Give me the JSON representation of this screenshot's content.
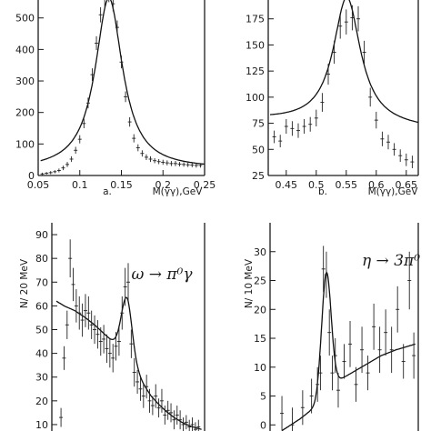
{
  "chart_data": [
    {
      "id": "a",
      "type": "scatter",
      "xlim": [
        0.05,
        0.25
      ],
      "ylim": [
        0,
        580
      ],
      "x_ticks": [
        0.05,
        0.1,
        0.15,
        0.2,
        0.25
      ],
      "x_tick_labels": [
        "0.05",
        "0.1",
        "0.15",
        "0.2",
        "0.25"
      ],
      "y_ticks": [
        0,
        100,
        200,
        300,
        400,
        500
      ],
      "y_tick_labels": [
        "0",
        "100",
        "200",
        "300",
        "400",
        "500"
      ],
      "panel_letter": "a.",
      "xlabel": "M(γγ),GeV",
      "ylabel": "",
      "annotation": "",
      "fit_peak": {
        "mass": 0.135,
        "width": 0.02,
        "amplitude": 545,
        "background": [
          18,
          180
        ]
      },
      "points": [
        [
          0.055,
          5,
          4
        ],
        [
          0.06,
          7,
          4
        ],
        [
          0.065,
          9,
          5
        ],
        [
          0.07,
          12,
          5
        ],
        [
          0.075,
          16,
          6
        ],
        [
          0.08,
          24,
          7
        ],
        [
          0.085,
          35,
          8
        ],
        [
          0.09,
          52,
          9
        ],
        [
          0.095,
          80,
          11
        ],
        [
          0.1,
          115,
          13
        ],
        [
          0.105,
          165,
          15
        ],
        [
          0.11,
          230,
          17
        ],
        [
          0.115,
          320,
          20
        ],
        [
          0.12,
          420,
          22
        ],
        [
          0.125,
          510,
          24
        ],
        [
          0.13,
          560,
          25
        ],
        [
          0.135,
          575,
          25
        ],
        [
          0.14,
          545,
          24
        ],
        [
          0.145,
          470,
          22
        ],
        [
          0.15,
          360,
          20
        ],
        [
          0.155,
          250,
          17
        ],
        [
          0.16,
          170,
          15
        ],
        [
          0.165,
          118,
          13
        ],
        [
          0.17,
          88,
          11
        ],
        [
          0.175,
          70,
          10
        ],
        [
          0.18,
          58,
          9
        ],
        [
          0.185,
          52,
          9
        ],
        [
          0.19,
          47,
          8
        ],
        [
          0.195,
          44,
          8
        ],
        [
          0.2,
          42,
          8
        ],
        [
          0.205,
          40,
          8
        ],
        [
          0.21,
          38,
          8
        ],
        [
          0.215,
          38,
          8
        ],
        [
          0.22,
          36,
          7
        ],
        [
          0.225,
          35,
          7
        ],
        [
          0.23,
          34,
          7
        ],
        [
          0.235,
          33,
          7
        ],
        [
          0.24,
          32,
          7
        ],
        [
          0.245,
          32,
          7
        ]
      ]
    },
    {
      "id": "b",
      "type": "scatter",
      "xlim": [
        0.42,
        0.67
      ],
      "ylim": [
        25,
        200
      ],
      "x_ticks": [
        0.45,
        0.5,
        0.55,
        0.6,
        0.65
      ],
      "x_tick_labels": [
        "0.45",
        "0.5",
        "0.55",
        "0.6",
        "0.65"
      ],
      "y_ticks": [
        25,
        50,
        75,
        100,
        125,
        150,
        175
      ],
      "y_tick_labels": [
        "25",
        "50",
        "75",
        "100",
        "125",
        "150",
        "175"
      ],
      "panel_letter": "b.",
      "xlabel": "M(γγ),GeV",
      "ylabel": "",
      "annotation": "",
      "fit_peak": {
        "mass": 0.551,
        "width": 0.0275,
        "amplitude": 122,
        "background": [
          72,
          33
        ]
      },
      "points": [
        [
          0.43,
          62,
          6
        ],
        [
          0.44,
          58,
          6
        ],
        [
          0.45,
          72,
          7
        ],
        [
          0.46,
          70,
          7
        ],
        [
          0.47,
          68,
          7
        ],
        [
          0.48,
          72,
          7
        ],
        [
          0.49,
          74,
          7
        ],
        [
          0.5,
          80,
          8
        ],
        [
          0.51,
          95,
          9
        ],
        [
          0.52,
          122,
          10
        ],
        [
          0.53,
          143,
          11
        ],
        [
          0.54,
          168,
          12
        ],
        [
          0.55,
          172,
          12
        ],
        [
          0.56,
          176,
          12
        ],
        [
          0.57,
          175,
          12
        ],
        [
          0.58,
          143,
          11
        ],
        [
          0.59,
          100,
          9
        ],
        [
          0.6,
          78,
          8
        ],
        [
          0.61,
          60,
          7
        ],
        [
          0.62,
          57,
          7
        ],
        [
          0.63,
          50,
          6
        ],
        [
          0.64,
          44,
          6
        ],
        [
          0.65,
          40,
          6
        ],
        [
          0.66,
          38,
          6
        ]
      ]
    },
    {
      "id": "c",
      "type": "scatter",
      "xlim": [
        0,
        1
      ],
      "ylim": [
        5,
        95
      ],
      "x_ticks": [],
      "x_tick_labels": [],
      "y_ticks": [
        10,
        20,
        30,
        40,
        50,
        60,
        70,
        80,
        90
      ],
      "y_tick_labels": [
        "10",
        "20",
        "30",
        "40",
        "50",
        "60",
        "70",
        "80",
        "90"
      ],
      "panel_letter": "",
      "xlabel": "",
      "ylabel": "N/ 20 MeV",
      "annotation": "ω → π⁰γ",
      "fit_peak": {
        "mass": 0.49,
        "width": 0.035,
        "amplitude": 23
      },
      "fit_curve_c": [
        [
          0.03,
          62
        ],
        [
          0.08,
          60
        ],
        [
          0.15,
          58
        ],
        [
          0.22,
          55
        ],
        [
          0.28,
          52
        ],
        [
          0.33,
          49
        ],
        [
          0.38,
          46
        ],
        [
          0.42,
          44
        ],
        [
          0.46,
          42
        ],
        [
          0.5,
          40
        ],
        [
          0.55,
          33
        ],
        [
          0.6,
          27
        ],
        [
          0.65,
          22
        ],
        [
          0.7,
          18.5
        ],
        [
          0.75,
          15.5
        ],
        [
          0.8,
          13
        ],
        [
          0.85,
          11
        ],
        [
          0.9,
          9.5
        ],
        [
          0.95,
          8.5
        ],
        [
          0.98,
          8
        ]
      ],
      "points": [
        [
          0.06,
          13,
          4
        ],
        [
          0.08,
          38,
          5
        ],
        [
          0.1,
          52,
          6
        ],
        [
          0.12,
          80,
          8
        ],
        [
          0.14,
          69,
          7
        ],
        [
          0.16,
          60,
          7
        ],
        [
          0.18,
          57,
          7
        ],
        [
          0.2,
          54,
          7
        ],
        [
          0.22,
          58,
          7
        ],
        [
          0.24,
          57,
          7
        ],
        [
          0.26,
          52,
          6
        ],
        [
          0.28,
          50,
          6
        ],
        [
          0.3,
          48,
          6
        ],
        [
          0.32,
          45,
          6
        ],
        [
          0.34,
          46,
          6
        ],
        [
          0.36,
          42,
          6
        ],
        [
          0.38,
          40,
          6
        ],
        [
          0.4,
          38,
          6
        ],
        [
          0.42,
          43,
          6
        ],
        [
          0.44,
          45,
          6
        ],
        [
          0.46,
          57,
          7
        ],
        [
          0.48,
          68,
          8
        ],
        [
          0.5,
          70,
          8
        ],
        [
          0.52,
          44,
          6
        ],
        [
          0.54,
          32,
          6
        ],
        [
          0.56,
          28,
          5
        ],
        [
          0.58,
          25,
          5
        ],
        [
          0.6,
          22,
          5
        ],
        [
          0.62,
          26,
          5
        ],
        [
          0.64,
          20,
          5
        ],
        [
          0.66,
          18,
          4
        ],
        [
          0.68,
          22,
          5
        ],
        [
          0.7,
          17,
          4
        ],
        [
          0.72,
          20,
          5
        ],
        [
          0.74,
          14,
          4
        ],
        [
          0.76,
          16,
          4
        ],
        [
          0.78,
          15,
          4
        ],
        [
          0.8,
          12,
          4
        ],
        [
          0.82,
          14,
          4
        ],
        [
          0.84,
          12,
          4
        ],
        [
          0.86,
          10,
          3
        ],
        [
          0.88,
          11,
          3
        ],
        [
          0.9,
          9,
          3
        ],
        [
          0.92,
          10,
          3
        ],
        [
          0.94,
          8,
          3
        ],
        [
          0.96,
          9,
          3
        ]
      ]
    },
    {
      "id": "d",
      "type": "scatter",
      "xlim": [
        0,
        1
      ],
      "ylim": [
        -2,
        35
      ],
      "x_ticks": [],
      "x_tick_labels": [],
      "y_ticks": [
        0,
        5,
        10,
        15,
        20,
        25,
        30
      ],
      "y_tick_labels": [
        "0",
        "5",
        "10",
        "15",
        "20",
        "25",
        "30"
      ],
      "panel_letter": "",
      "xlabel": "",
      "ylabel": "N/ 10 MeV",
      "annotation": "η → 3π⁰",
      "fit_peak": {
        "mass": 0.38,
        "width": 0.032,
        "amplitude": 21
      },
      "fit_background": [
        [
          0.08,
          -1
        ],
        [
          0.2,
          1
        ],
        [
          0.3,
          3
        ],
        [
          0.4,
          6
        ],
        [
          0.45,
          7.5
        ],
        [
          0.55,
          9
        ],
        [
          0.65,
          10.5
        ],
        [
          0.75,
          12
        ],
        [
          0.85,
          13
        ],
        [
          0.98,
          14
        ]
      ],
      "points": [
        [
          0.08,
          2,
          3
        ],
        [
          0.15,
          0,
          3
        ],
        [
          0.22,
          3,
          3
        ],
        [
          0.28,
          5,
          3
        ],
        [
          0.32,
          7,
          3
        ],
        [
          0.34,
          9,
          3
        ],
        [
          0.36,
          27,
          4
        ],
        [
          0.38,
          26,
          4
        ],
        [
          0.4,
          16,
          4
        ],
        [
          0.42,
          9,
          3
        ],
        [
          0.44,
          12,
          3
        ],
        [
          0.46,
          6,
          3
        ],
        [
          0.5,
          11,
          3
        ],
        [
          0.54,
          14,
          4
        ],
        [
          0.58,
          7,
          3
        ],
        [
          0.62,
          13,
          4
        ],
        [
          0.66,
          9,
          3
        ],
        [
          0.7,
          17,
          4
        ],
        [
          0.74,
          13,
          4
        ],
        [
          0.78,
          16,
          4
        ],
        [
          0.82,
          13,
          4
        ],
        [
          0.86,
          20,
          4
        ],
        [
          0.9,
          11,
          3
        ],
        [
          0.94,
          25,
          5
        ],
        [
          0.97,
          12,
          4
        ]
      ]
    }
  ]
}
